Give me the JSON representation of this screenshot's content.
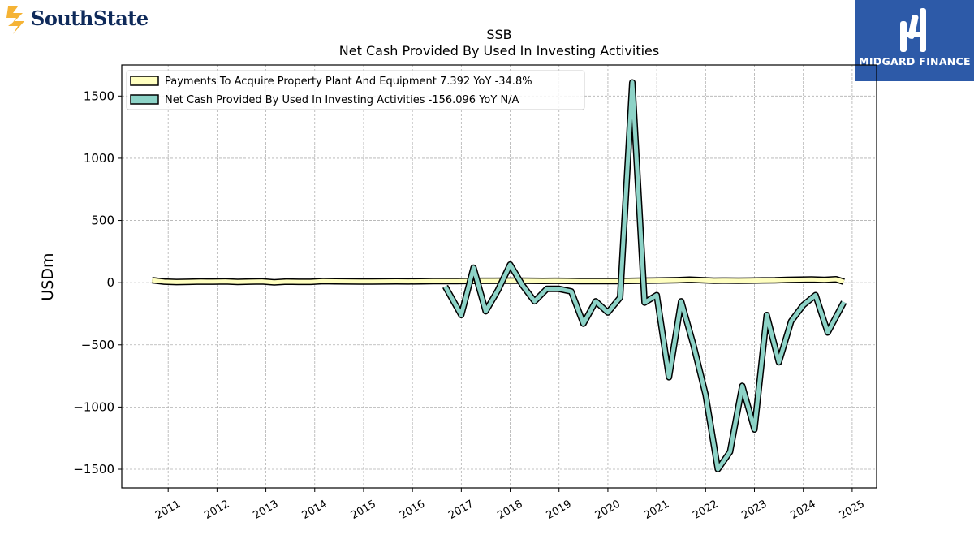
{
  "logos": {
    "left_text": "SouthState",
    "right_text": "MIDGARD FINANCE"
  },
  "chart_data": {
    "type": "line",
    "title": "SSB",
    "subtitle": "Net Cash Provided By Used In Investing Activities",
    "ylabel": "USDm",
    "ylim": [
      -1650,
      1750
    ],
    "xlim": [
      2010.05,
      2025.5
    ],
    "yticks": [
      -1500,
      -1000,
      -500,
      0,
      500,
      1000,
      1500
    ],
    "ytick_labels": [
      "−1500",
      "−1000",
      "−500",
      "0",
      "500",
      "1000",
      "1500"
    ],
    "xticks": [
      2011,
      2012,
      2013,
      2014,
      2015,
      2016,
      2017,
      2018,
      2019,
      2020,
      2021,
      2022,
      2023,
      2024,
      2025
    ],
    "xtick_labels": [
      "2011",
      "2012",
      "2013",
      "2014",
      "2015",
      "2016",
      "2017",
      "2018",
      "2019",
      "2020",
      "2021",
      "2022",
      "2023",
      "2024",
      "2025"
    ],
    "grid": true,
    "legend_position": "top-left",
    "series": [
      {
        "name": "Payments To Acquire Property Plant And Equipment  7.392 YoY -34.8%",
        "color": "#ffffc0",
        "x": [
          2010.67,
          2010.92,
          2011.17,
          2011.42,
          2011.67,
          2011.92,
          2012.17,
          2012.42,
          2012.67,
          2012.92,
          2013.17,
          2013.42,
          2013.67,
          2013.92,
          2014.17,
          2014.42,
          2014.67,
          2014.92,
          2015.17,
          2015.42,
          2015.67,
          2015.92,
          2016.17,
          2016.42,
          2016.67,
          2016.92,
          2017.17,
          2017.42,
          2017.67,
          2017.92,
          2018.17,
          2018.42,
          2018.67,
          2018.92,
          2019.17,
          2019.42,
          2019.67,
          2019.92,
          2020.17,
          2020.42,
          2020.67,
          2020.92,
          2021.17,
          2021.42,
          2021.67,
          2021.92,
          2022.17,
          2022.42,
          2022.67,
          2022.92,
          2023.17,
          2023.42,
          2023.67,
          2023.92,
          2024.17,
          2024.42,
          2024.67,
          2024.83
        ],
        "values": [
          20,
          8,
          5,
          7,
          9,
          8,
          10,
          6,
          8,
          10,
          3,
          8,
          7,
          7,
          12,
          11,
          10,
          9,
          9,
          10,
          11,
          10,
          11,
          12,
          12,
          13,
          14,
          15,
          15,
          16,
          16,
          15,
          14,
          15,
          14,
          13,
          12,
          13,
          13,
          14,
          16,
          17,
          18,
          20,
          24,
          20,
          16,
          17,
          16,
          17,
          18,
          19,
          22,
          24,
          25,
          22,
          27,
          7.392
        ]
      },
      {
        "name": "Net Cash Provided By Used In Investing Activities  -156.096 YoY N/A",
        "color": "#8dd3c7",
        "x": [
          2016.67,
          2017.0,
          2017.25,
          2017.5,
          2017.75,
          2018.0,
          2018.25,
          2018.5,
          2018.75,
          2019.0,
          2019.25,
          2019.5,
          2019.75,
          2020.0,
          2020.25,
          2020.5,
          2020.75,
          2021.0,
          2021.25,
          2021.5,
          2021.75,
          2022.0,
          2022.25,
          2022.5,
          2022.75,
          2023.0,
          2023.25,
          2023.5,
          2023.75,
          2024.0,
          2024.25,
          2024.5,
          2024.83
        ],
        "values": [
          -30,
          -260,
          120,
          -230,
          -60,
          145,
          -20,
          -150,
          -50,
          -50,
          -70,
          -330,
          -150,
          -240,
          -120,
          1610,
          -160,
          -100,
          -760,
          -150,
          -500,
          -900,
          -1500,
          -1360,
          -830,
          -1180,
          -260,
          -640,
          -310,
          -180,
          -100,
          -400,
          -156.096
        ]
      }
    ]
  }
}
